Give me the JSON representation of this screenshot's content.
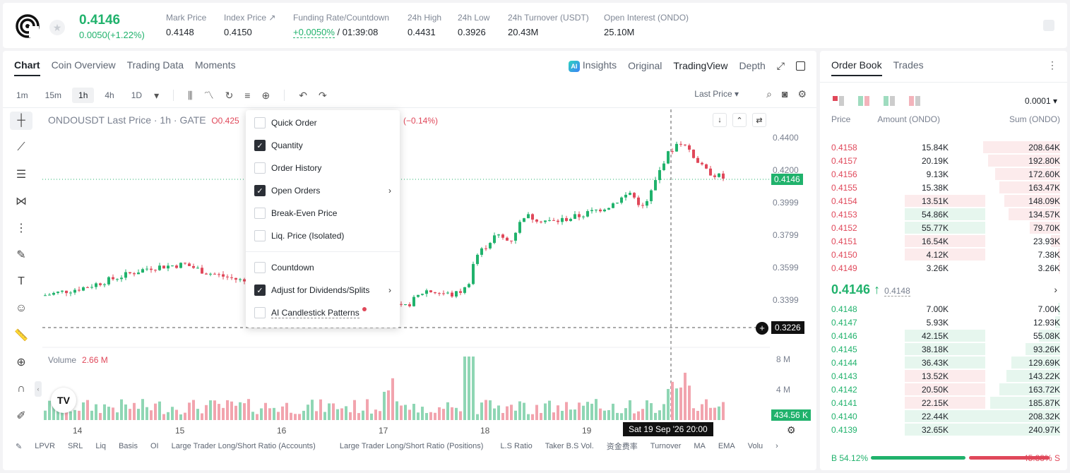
{
  "header": {
    "last_price": "0.4146",
    "change": "0.0050(+1.22%)",
    "stats": [
      {
        "label": "Mark Price",
        "value": "0.4148"
      },
      {
        "label": "Index Price ↗",
        "value": "0.4150"
      },
      {
        "label": "Funding Rate/Countdown",
        "value_green": "+0.0050%",
        "value": " / 01:39:08"
      },
      {
        "label": "24h High",
        "value": "0.4431"
      },
      {
        "label": "24h Low",
        "value": "0.3926"
      },
      {
        "label": "24h Turnover (USDT)",
        "value": "20.43M"
      },
      {
        "label": "Open Interest (ONDO)",
        "value": "25.10M"
      }
    ]
  },
  "chart_tabs": [
    "Chart",
    "Coin Overview",
    "Trading Data",
    "Moments"
  ],
  "view_tabs": {
    "insights": "Insights",
    "ai_badge": "AI",
    "original": "Original",
    "tradingview": "TradingView",
    "depth": "Depth"
  },
  "timeframes": [
    "1m",
    "15m",
    "1h",
    "4h",
    "1D"
  ],
  "price_type": "Last Price",
  "symbol_title": "ONDOUSDT Last Price · 1h · GATE",
  "ohlc_prefix": "O0.425",
  "pct_change": "(−0.14%)",
  "price_axis": [
    "0.4400",
    "0.4200",
    "0.3999",
    "0.3799",
    "0.3599",
    "0.3399"
  ],
  "current_price_tag": "0.4146",
  "crosshair_price": "0.3226",
  "volume": {
    "label": "Volume",
    "value": "2.66 M",
    "axis": [
      "8 M",
      "4 M"
    ],
    "tag": "434.56 K"
  },
  "date_axis": [
    "14",
    "15",
    "16",
    "17",
    "18",
    "19"
  ],
  "crosshair_date": "Sat 19 Sep '26   20:00",
  "indicators": [
    "LPVR",
    "SRL",
    "Liq",
    "Basis",
    "OI",
    "Large Trader Long/Short Ratio (Accounts)",
    "Large Trader Long/Short Ratio (Positions)",
    "L.S Ratio",
    "Taker B.S Vol.",
    "资金费率",
    "Turnover",
    "MA",
    "EMA",
    "Volu"
  ],
  "dropdown": {
    "items": [
      {
        "label": "Quick Order",
        "checked": false
      },
      {
        "label": "Quantity",
        "checked": true
      },
      {
        "label": "Order History",
        "checked": false
      },
      {
        "label": "Open Orders",
        "checked": true,
        "submenu": true
      },
      {
        "label": "Break-Even Price",
        "checked": false
      },
      {
        "label": "Liq. Price (Isolated)",
        "checked": false
      },
      {
        "label": "Countdown",
        "checked": false
      },
      {
        "label": "Adjust for Dividends/Splits",
        "checked": true,
        "submenu": true
      },
      {
        "label": "AI Candlestick Patterns",
        "checked": false,
        "dot": true
      }
    ]
  },
  "orderbook": {
    "tabs": [
      "Order Book",
      "Trades"
    ],
    "tick_size": "0.0001",
    "headers": {
      "price": "Price",
      "amount": "Amount (ONDO)",
      "sum": "Sum (ONDO)"
    },
    "asks": [
      {
        "price": "0.4158",
        "amount": "15.84K",
        "sum": "208.64K",
        "amt_frac": 0.0,
        "sum_frac": 0.33
      },
      {
        "price": "0.4157",
        "amount": "20.19K",
        "sum": "192.80K",
        "amt_frac": 0.0,
        "sum_frac": 0.31
      },
      {
        "price": "0.4156",
        "amount": "9.13K",
        "sum": "172.60K",
        "amt_frac": 0.0,
        "sum_frac": 0.28
      },
      {
        "price": "0.4155",
        "amount": "15.38K",
        "sum": "163.47K",
        "amt_frac": 0.0,
        "sum_frac": 0.26
      },
      {
        "price": "0.4154",
        "amount": "13.51K",
        "sum": "148.09K",
        "amt_frac": 0.36,
        "sum_frac": 0.24
      },
      {
        "price": "0.4153",
        "amount": "54.86K",
        "sum": "134.57K",
        "amt_frac": 0.36,
        "sum_frac": 0.22
      },
      {
        "price": "0.4152",
        "amount": "55.77K",
        "sum": "79.70K",
        "amt_frac": 0.36,
        "sum_frac": 0.13
      },
      {
        "price": "0.4151",
        "amount": "16.54K",
        "sum": "23.93K",
        "amt_frac": 0.36,
        "sum_frac": 0.04
      },
      {
        "price": "0.4150",
        "amount": "4.12K",
        "sum": "7.38K",
        "amt_frac": 0.36,
        "sum_frac": 0.01
      },
      {
        "price": "0.4149",
        "amount": "3.26K",
        "sum": "3.26K",
        "amt_frac": 0.0,
        "sum_frac": 0.005
      }
    ],
    "ask_amount_colors": [
      "none",
      "none",
      "none",
      "none",
      "red",
      "green",
      "green",
      "red",
      "red",
      "none"
    ],
    "mid_price": "0.4146",
    "mid_arrow": "↑",
    "mark_price": "0.4148",
    "bids": [
      {
        "price": "0.4148",
        "amount": "7.00K",
        "sum": "7.00K",
        "sum_frac": 0.01
      },
      {
        "price": "0.4147",
        "amount": "5.93K",
        "sum": "12.93K",
        "sum_frac": 0.02
      },
      {
        "price": "0.4146",
        "amount": "42.15K",
        "sum": "55.08K",
        "sum_frac": 0.09
      },
      {
        "price": "0.4145",
        "amount": "38.18K",
        "sum": "93.26K",
        "sum_frac": 0.15
      },
      {
        "price": "0.4144",
        "amount": "36.43K",
        "sum": "129.69K",
        "sum_frac": 0.21
      },
      {
        "price": "0.4143",
        "amount": "13.52K",
        "sum": "143.22K",
        "sum_frac": 0.23
      },
      {
        "price": "0.4142",
        "amount": "20.50K",
        "sum": "163.72K",
        "sum_frac": 0.26
      },
      {
        "price": "0.4141",
        "amount": "22.15K",
        "sum": "185.87K",
        "sum_frac": 0.3
      },
      {
        "price": "0.4140",
        "amount": "22.44K",
        "sum": "208.32K",
        "sum_frac": 0.33
      },
      {
        "price": "0.4139",
        "amount": "32.65K",
        "sum": "240.97K",
        "sum_frac": 0.39
      }
    ],
    "bid_amount_colors": [
      "none",
      "none",
      "green",
      "green",
      "green",
      "red",
      "red",
      "red",
      "green",
      "green"
    ],
    "buy_ratio": "B 54.12%",
    "sell_ratio": "45.88% S",
    "buy_frac": 0.5412
  },
  "colors": {
    "green": "#20b26c",
    "red": "#e0485a",
    "green_bg": "#e6f6ee",
    "red_bg": "#fcebec"
  }
}
